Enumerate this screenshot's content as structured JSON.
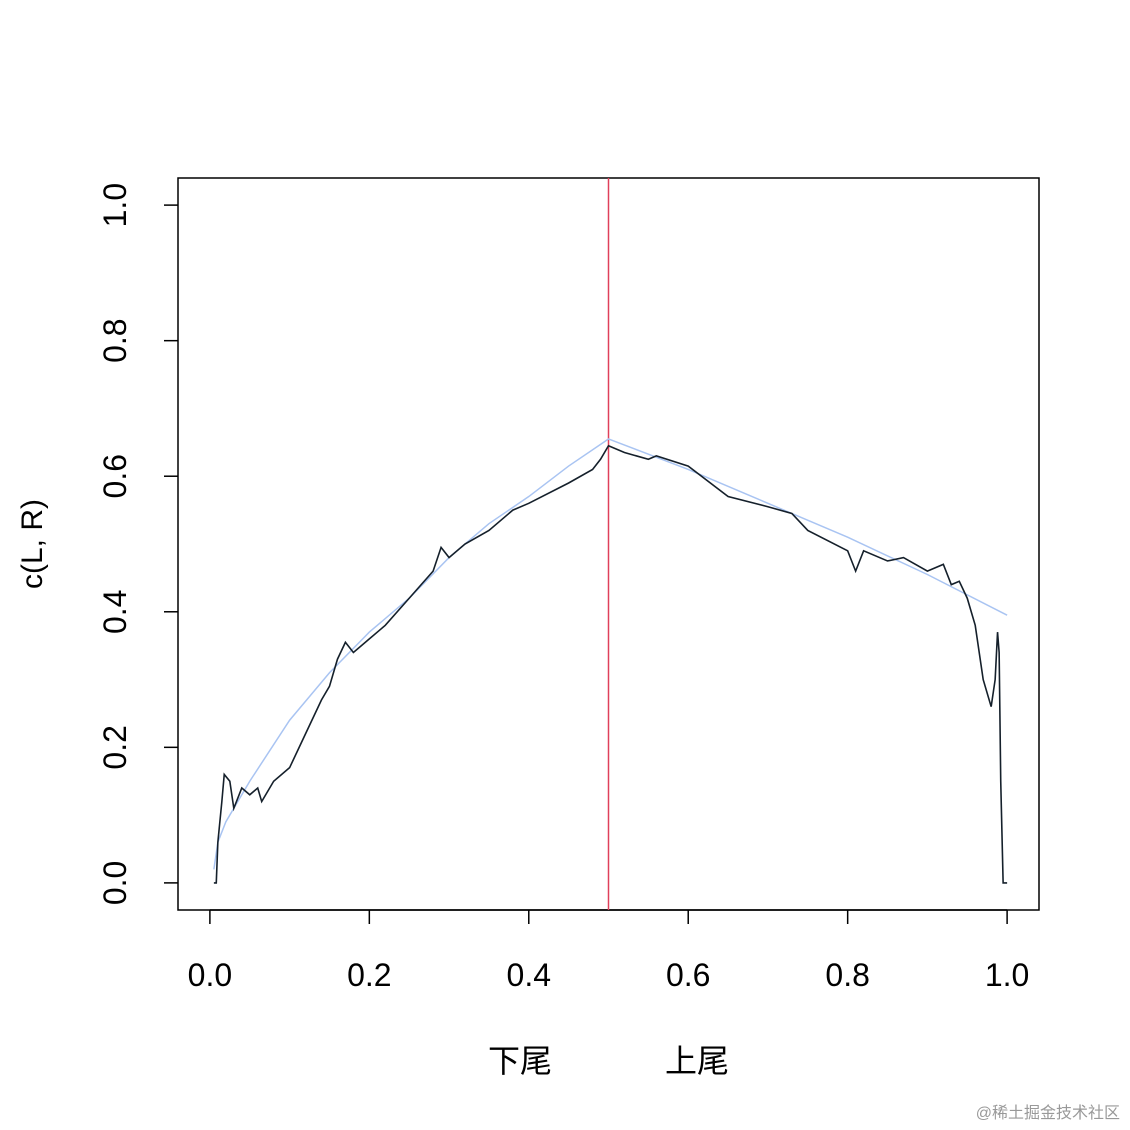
{
  "chart_data": {
    "type": "line",
    "ylabel": "c(L, R)",
    "xlabels": [
      "下尾",
      "上尾"
    ],
    "watermark": "@稀土掘金技术社区",
    "xlim": [
      -0.04,
      1.04
    ],
    "ylim": [
      -0.04,
      1.04
    ],
    "xticks": [
      {
        "value": 0,
        "label": "0.0"
      },
      0.2,
      0.4,
      0.6,
      0.8,
      {
        "value": 1,
        "label": "1.0"
      }
    ],
    "yticks": [
      {
        "value": 0,
        "label": "0.0"
      },
      0.2,
      0.4,
      0.6,
      0.8,
      {
        "value": 1,
        "label": "1.0"
      }
    ],
    "vline": {
      "x": 0.5,
      "color": "#e0405a"
    },
    "series": [
      {
        "color": "#a9c4f2",
        "x": [
          0.005,
          0.01,
          0.02,
          0.05,
          0.1,
          0.15,
          0.2,
          0.25,
          0.3,
          0.35,
          0.4,
          0.45,
          0.5,
          0.6,
          0.7,
          0.8,
          0.9,
          1.0
        ],
        "values": [
          0.02,
          0.06,
          0.09,
          0.15,
          0.24,
          0.31,
          0.37,
          0.42,
          0.48,
          0.53,
          0.57,
          0.615,
          0.655,
          0.61,
          0.56,
          0.51,
          0.455,
          0.395
        ]
      },
      {
        "color": "#15202b",
        "x": [
          0.005,
          0.008,
          0.01,
          0.015,
          0.018,
          0.025,
          0.03,
          0.04,
          0.05,
          0.06,
          0.065,
          0.08,
          0.1,
          0.12,
          0.14,
          0.15,
          0.16,
          0.17,
          0.18,
          0.2,
          0.22,
          0.25,
          0.28,
          0.29,
          0.3,
          0.32,
          0.35,
          0.38,
          0.4,
          0.45,
          0.48,
          0.49,
          0.5,
          0.52,
          0.55,
          0.56,
          0.6,
          0.65,
          0.7,
          0.73,
          0.75,
          0.8,
          0.81,
          0.82,
          0.85,
          0.87,
          0.9,
          0.92,
          0.93,
          0.94,
          0.95,
          0.96,
          0.97,
          0.98,
          0.985,
          0.988,
          0.99,
          0.992,
          0.995,
          1.0
        ],
        "values": [
          0,
          0,
          0.06,
          0.12,
          0.16,
          0.15,
          0.11,
          0.14,
          0.13,
          0.14,
          0.12,
          0.15,
          0.17,
          0.22,
          0.27,
          0.29,
          0.33,
          0.355,
          0.34,
          0.36,
          0.38,
          0.42,
          0.46,
          0.495,
          0.48,
          0.5,
          0.52,
          0.55,
          0.56,
          0.59,
          0.61,
          0.625,
          0.645,
          0.635,
          0.625,
          0.63,
          0.615,
          0.57,
          0.555,
          0.545,
          0.52,
          0.49,
          0.46,
          0.49,
          0.475,
          0.48,
          0.46,
          0.47,
          0.44,
          0.445,
          0.42,
          0.38,
          0.3,
          0.26,
          0.3,
          0.37,
          0.34,
          0.15,
          0,
          0
        ]
      }
    ]
  }
}
